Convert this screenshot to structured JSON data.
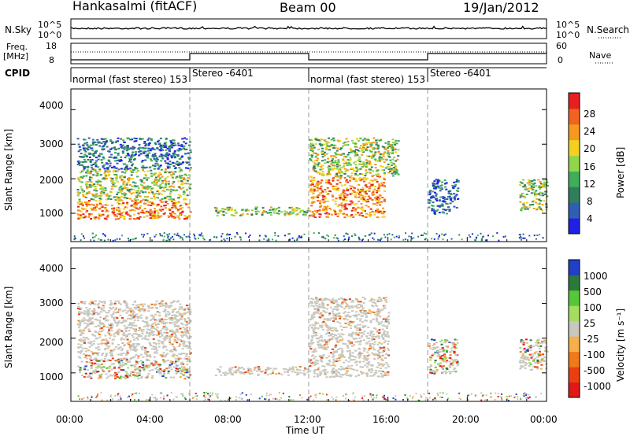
{
  "header": {
    "station": "Hankasalmi (fitACF)",
    "beam": "Beam 00",
    "date": "19/Jan/2012"
  },
  "top_panels": {
    "nsky_label": "N.Sky",
    "nsearch_label": "N.Search",
    "freq_label_1": "Freq.",
    "freq_label_2": "[MHz]",
    "nave_label": "Nave",
    "cpid_label": "CPID",
    "nsky_ticks": [
      "10^5",
      "10^0"
    ],
    "nsearch_ticks": [
      "10^5",
      "10^0"
    ],
    "freq_ticks": [
      "18",
      "8"
    ],
    "nave_ticks": [
      "60",
      "0"
    ],
    "cpid_segments": [
      {
        "start": 0,
        "end": 6,
        "label": "normal (fast stereo) 153"
      },
      {
        "start": 6,
        "end": 12,
        "label": "Stereo -6401"
      },
      {
        "start": 12,
        "end": 18,
        "label": "normal (fast stereo) 153"
      },
      {
        "start": 18,
        "end": 24,
        "label": "Stereo -6401"
      }
    ]
  },
  "colors": {
    "power_scale": [
      "#1f1fe6",
      "#2e5fb5",
      "#2f7f5f",
      "#3fae5a",
      "#8fd64a",
      "#f2d21f",
      "#f59a1f",
      "#f0641f",
      "#e61f1f"
    ],
    "velocity_scale": [
      "#2040c8",
      "#2a7a3a",
      "#56c73a",
      "#a5dd60",
      "#c8c8c0",
      "#f5b04a",
      "#f07a1a",
      "#e94010",
      "#e01818"
    ]
  },
  "chart_data": [
    {
      "type": "heatmap",
      "title": "",
      "ylabel": "Slant Range [km]",
      "xlabel": "",
      "ylim": [
        180,
        4600
      ],
      "yticks": [
        "4000",
        "3000",
        "2000",
        "1000"
      ],
      "colorbar_label": "Power [dB]",
      "colorbar_ticks": [
        "28",
        "24",
        "20",
        "16",
        "12",
        "8",
        "4"
      ],
      "echo_regions": [
        {
          "t0": 0.3,
          "t1": 6.0,
          "r0": 850,
          "r1": 1400,
          "level": "high"
        },
        {
          "t0": 0.3,
          "t1": 6.0,
          "r0": 1400,
          "r1": 2300,
          "level": "medium"
        },
        {
          "t0": 0.3,
          "t1": 6.0,
          "r0": 2300,
          "r1": 3200,
          "level": "low"
        },
        {
          "t0": 7.2,
          "t1": 12.0,
          "r0": 950,
          "r1": 1200,
          "level": "medium"
        },
        {
          "t0": 12.0,
          "t1": 15.8,
          "r0": 900,
          "r1": 2100,
          "level": "high"
        },
        {
          "t0": 12.0,
          "t1": 16.5,
          "r0": 2100,
          "r1": 3200,
          "level": "medium"
        },
        {
          "t0": 18.0,
          "t1": 19.5,
          "r0": 1000,
          "r1": 2000,
          "level": "low"
        },
        {
          "t0": 22.6,
          "t1": 24.0,
          "r0": 1100,
          "r1": 2000,
          "level": "medium"
        }
      ]
    },
    {
      "type": "heatmap",
      "title": "",
      "xlabel": "Time UT",
      "ylabel": "Slant Range [km]",
      "ylim": [
        180,
        4600
      ],
      "yticks": [
        "4000",
        "3000",
        "2000",
        "1000"
      ],
      "xticks": [
        "00:00",
        "04:00",
        "08:00",
        "12:00",
        "16:00",
        "20:00",
        "00:00"
      ],
      "colorbar_label": "Velocity [m s⁻¹]",
      "colorbar_ticks": [
        "1000",
        "500",
        "100",
        "25",
        "-25",
        "-100",
        "-500",
        "-1000"
      ],
      "echo_regions": [
        {
          "t0": 0.3,
          "t1": 6.0,
          "r0": 850,
          "r1": 1400,
          "level": "mixed"
        },
        {
          "t0": 0.3,
          "t1": 6.0,
          "r0": 1400,
          "r1": 3100,
          "level": "ground"
        },
        {
          "t0": 7.2,
          "t1": 12.0,
          "r0": 950,
          "r1": 1200,
          "level": "ground"
        },
        {
          "t0": 12.0,
          "t1": 16.0,
          "r0": 900,
          "r1": 3200,
          "level": "ground"
        },
        {
          "t0": 18.0,
          "t1": 19.5,
          "r0": 1000,
          "r1": 2000,
          "level": "mixed"
        },
        {
          "t0": 22.6,
          "t1": 24.0,
          "r0": 1100,
          "r1": 2000,
          "level": "mixed"
        }
      ]
    }
  ]
}
